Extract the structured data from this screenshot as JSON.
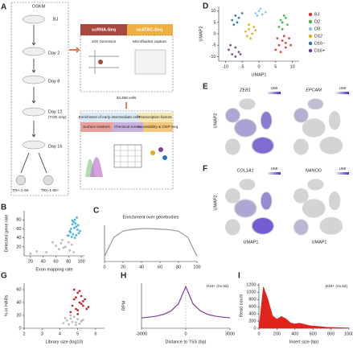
{
  "panel_labels": [
    "A",
    "B",
    "C",
    "D",
    "E",
    "F",
    "G",
    "H",
    "I"
  ],
  "schematic": {
    "factors": "OSKM",
    "start": "BJ",
    "days": [
      "Day 2",
      "Day 8",
      "Day 12",
      "Day 16"
    ],
    "day12_note": "(TGR only)",
    "sorted": [
      "TRA-1-60-",
      "TRA-1-60+"
    ],
    "assays": [
      "scRNA-Seq",
      "scATAC-Seq"
    ],
    "platforms": [
      "10X Genomics",
      "Microfluidics capture"
    ],
    "cells": "33,468 cells",
    "applications": [
      "Enrichment of early-intermediate cells",
      "Transcription factors",
      "Surface markers",
      "Chemical screen",
      "Accessibility & ChIP-Seq"
    ]
  },
  "feature_plots": {
    "genes": [
      "ZEB1",
      "EPCAM",
      "COL1A1",
      "NANOG"
    ],
    "legend_title": "UMI",
    "x_label": "UMAP1",
    "y_label": "UMAP2"
  },
  "chart_data": [
    {
      "type": "scatter",
      "x_label": "Exon mapping rate",
      "y_label": "Detected gene rate",
      "xlim": [
        10,
        105
      ],
      "ylim": [
        0,
        100
      ],
      "xticks": [
        20,
        40,
        60,
        80,
        100
      ],
      "yticks": [
        20,
        40,
        60,
        80
      ],
      "series": [
        {
          "color": "#b5b5b5",
          "x": [
            20,
            30,
            45,
            55,
            60,
            65,
            70,
            75,
            78,
            82,
            85,
            88,
            72,
            68,
            80
          ],
          "y": [
            5,
            10,
            8,
            30,
            22,
            15,
            35,
            20,
            45,
            12,
            25,
            8,
            18,
            28,
            30
          ]
        },
        {
          "color": "#38ade2",
          "x": [
            80,
            82,
            84,
            86,
            88,
            90,
            92,
            94,
            96,
            85,
            87,
            89,
            91,
            93,
            83,
            95,
            98,
            90,
            86,
            92
          ],
          "y": [
            45,
            55,
            60,
            70,
            75,
            80,
            65,
            58,
            50,
            42,
            48,
            62,
            72,
            85,
            52,
            68,
            55,
            40,
            78,
            46
          ]
        }
      ]
    },
    {
      "type": "line",
      "title": "Enrichment over genebodies",
      "xlim": [
        0,
        100
      ],
      "ylim": [
        0,
        1.05
      ],
      "xticks": [
        0,
        20,
        40,
        60,
        80,
        100
      ],
      "series": [
        {
          "color": "#999999",
          "x": [
            0,
            10,
            20,
            30,
            40,
            50,
            60,
            70,
            80,
            90,
            100
          ],
          "values": [
            0.15,
            0.7,
            0.88,
            0.93,
            0.95,
            0.95,
            0.94,
            0.92,
            0.88,
            0.7,
            0.15
          ]
        }
      ]
    },
    {
      "type": "scatter",
      "x_label": "UMAP1",
      "y_label": "UMAP2",
      "xlim": [
        -12,
        12
      ],
      "ylim": [
        -12,
        12
      ],
      "xticks": [
        -10,
        -5,
        0,
        5,
        10
      ],
      "yticks": [
        -10,
        -5,
        0,
        5,
        10
      ],
      "legend": "right",
      "series": [
        {
          "name": "BJ",
          "color": "#e4302b",
          "x": [
            5,
            6,
            7,
            8,
            9,
            6.5,
            8,
            5.5,
            7.5,
            9.5
          ],
          "y": [
            -7,
            -5,
            -3,
            -6,
            -2,
            -8,
            -4,
            -2,
            -1,
            -5
          ]
        },
        {
          "name": "D2",
          "color": "#3cb44b",
          "x": [
            6,
            7,
            8,
            7,
            8.5,
            6.5,
            7.5
          ],
          "y": [
            3,
            5,
            7,
            2,
            4,
            6,
            8
          ]
        },
        {
          "name": "D8",
          "color": "#7ec8e8",
          "x": [
            -1,
            0,
            1,
            2,
            0.5,
            -0.5
          ],
          "y": [
            9,
            10,
            8.5,
            9.5,
            11,
            8
          ]
        },
        {
          "name": "D12",
          "color": "#e3a81b",
          "x": [
            -4,
            -3,
            -2,
            -1,
            -3.5,
            -2.5,
            -1.5,
            -3
          ],
          "y": [
            1,
            2,
            0,
            1.5,
            -1,
            -2,
            3,
            4
          ]
        },
        {
          "name": "D16−",
          "color": "#2474b8",
          "x": [
            -8,
            -7,
            -6,
            -5,
            -7.5,
            -6.5
          ],
          "y": [
            6,
            8,
            7,
            9,
            4,
            5
          ]
        },
        {
          "name": "D16+",
          "color": "#6a3d9a",
          "x": [
            -9,
            -8,
            -7,
            -6,
            -8.5,
            -7,
            -5.5
          ],
          "y": [
            -7,
            -9,
            -6,
            -8,
            -5,
            -10,
            -9
          ]
        }
      ]
    },
    {
      "type": "scatter",
      "x_label": "Library size (log10)",
      "y_label": "% in HARs",
      "xlim": [
        2,
        6.5
      ],
      "ylim": [
        0,
        70
      ],
      "xticks": [
        2,
        3,
        4,
        5,
        6
      ],
      "yticks": [
        0,
        20,
        40,
        60
      ],
      "series": [
        {
          "color": "#b5b5b5",
          "x": [
            4.2,
            4.4,
            4.5,
            4.6,
            4.7,
            4.8,
            4.9,
            5.0,
            5.1,
            5.2,
            4.3,
            4.6,
            4.9,
            5.3
          ],
          "y": [
            8,
            12,
            6,
            15,
            10,
            18,
            9,
            14,
            7,
            11,
            16,
            20,
            5,
            13
          ]
        },
        {
          "color": "#c0141a",
          "x": [
            4.6,
            4.7,
            4.8,
            4.9,
            5.0,
            5.1,
            5.2,
            5.3,
            5.4,
            5.5,
            4.8,
            5.0,
            5.2,
            5.1,
            4.9,
            5.3,
            5.6,
            5.0
          ],
          "y": [
            25,
            35,
            45,
            30,
            55,
            40,
            50,
            35,
            45,
            30,
            60,
            28,
            38,
            58,
            48,
            42,
            33,
            22
          ]
        }
      ]
    },
    {
      "type": "line",
      "annotation": "D16+ (no.52)",
      "x_label": "Distance to TSS (bp)",
      "y_label": "RPM",
      "xlim": [
        -3000,
        3000
      ],
      "ylim": [
        0,
        1.3
      ],
      "xticks": [
        -3000,
        0,
        3000
      ],
      "series": [
        {
          "color": "#7b3fa0",
          "x": [
            -3000,
            -2500,
            -2000,
            -1500,
            -1000,
            -500,
            0,
            500,
            1000,
            1500,
            2000,
            2500,
            3000
          ],
          "values": [
            0.3,
            0.32,
            0.35,
            0.4,
            0.5,
            0.7,
            1.2,
            0.7,
            0.5,
            0.4,
            0.35,
            0.32,
            0.3
          ]
        }
      ]
    },
    {
      "type": "area",
      "annotation": "D16+ (no.52)",
      "x_label": "Insert size (bp)",
      "y_label": "Read count",
      "xlim": [
        0,
        1000
      ],
      "ylim": [
        0,
        1250
      ],
      "xticks": [
        0,
        200,
        400,
        600,
        800,
        1000
      ],
      "yticks": [
        0,
        200,
        400,
        600,
        800,
        1000,
        1200
      ],
      "series": [
        {
          "color": "#e0231b",
          "x": [
            0,
            50,
            100,
            150,
            200,
            250,
            300,
            350,
            400,
            450,
            500,
            550,
            600,
            650,
            700,
            750,
            800,
            850,
            900,
            950,
            1000
          ],
          "values": [
            0,
            1150,
            800,
            350,
            250,
            330,
            260,
            150,
            120,
            140,
            110,
            80,
            60,
            55,
            40,
            30,
            25,
            20,
            15,
            12,
            10
          ]
        }
      ]
    }
  ]
}
